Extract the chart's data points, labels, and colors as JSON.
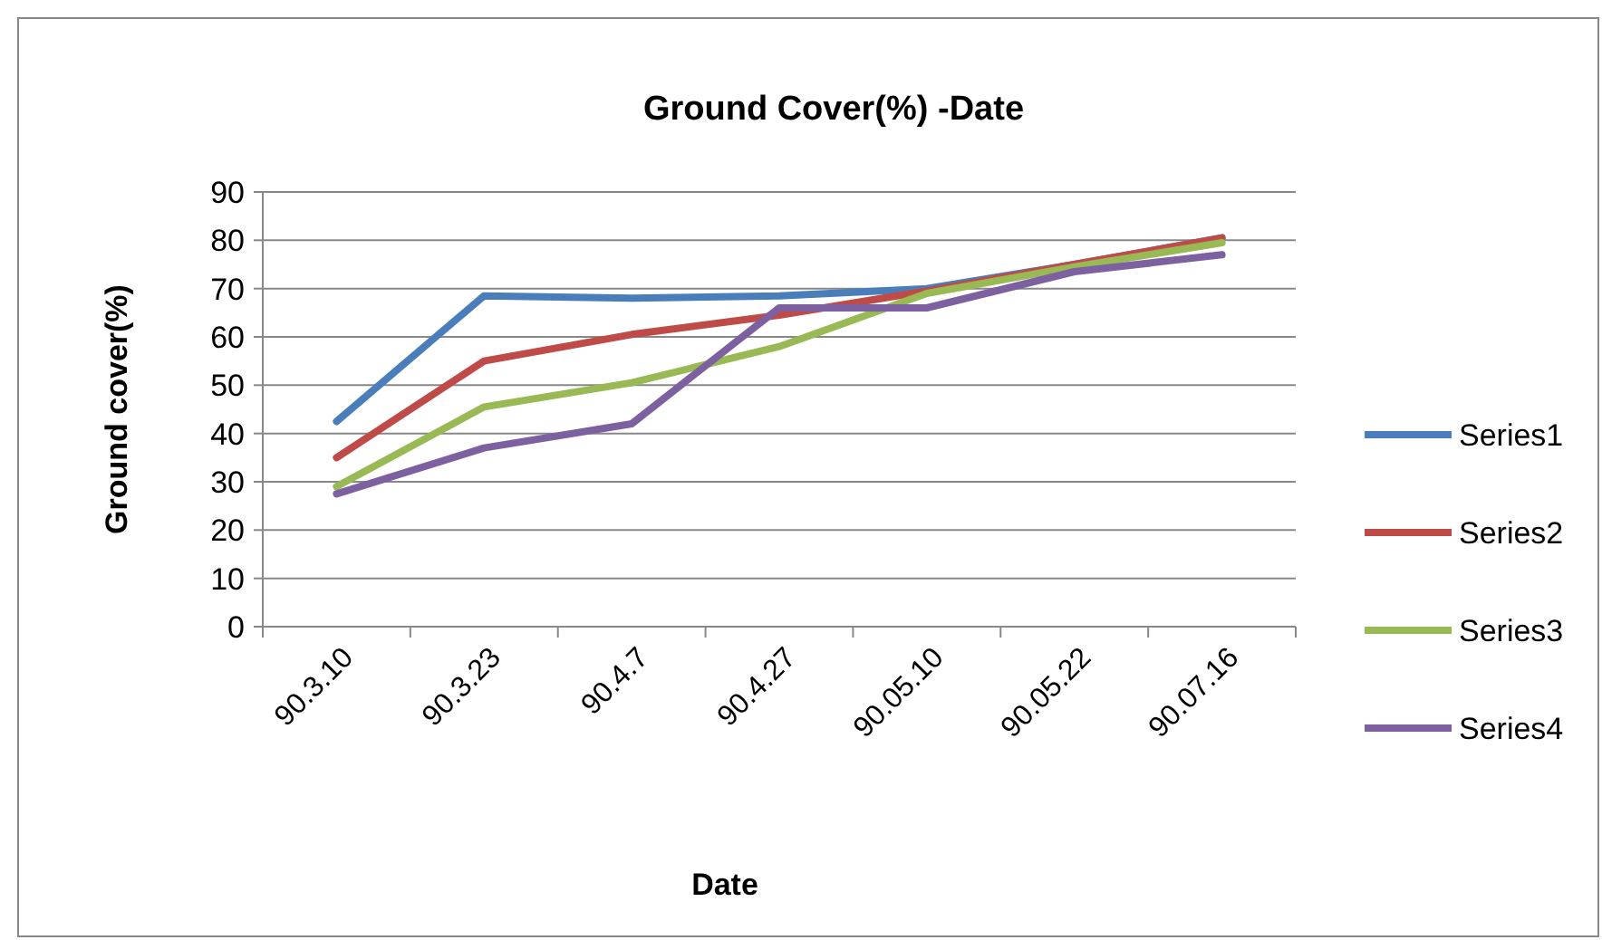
{
  "chart_data": {
    "type": "line",
    "title": "Ground Cover(%) -Date",
    "xlabel": "Date",
    "ylabel": "Ground cover(%)",
    "categories": [
      "90.3.10",
      "90.3.23",
      "90.4.7",
      "90.4.27",
      "90.05.10",
      "90.05.22",
      "90.07.16"
    ],
    "series": [
      {
        "name": "Series1",
        "color": "#4a7ebb",
        "values": [
          42.5,
          68.5,
          68,
          68.5,
          70,
          75,
          80.5
        ]
      },
      {
        "name": "Series2",
        "color": "#be4b48",
        "values": [
          35,
          55,
          60.5,
          64.5,
          69.5,
          75,
          80.5
        ]
      },
      {
        "name": "Series3",
        "color": "#98b954",
        "values": [
          29,
          45.5,
          50.5,
          58,
          69,
          74.5,
          79.5
        ]
      },
      {
        "name": "Series4",
        "color": "#7d60a0",
        "values": [
          27.5,
          37,
          42,
          66,
          66,
          73.5,
          77
        ]
      }
    ],
    "ylim": [
      0,
      90
    ],
    "yticks": [
      0,
      10,
      20,
      30,
      40,
      50,
      60,
      70,
      80,
      90
    ],
    "grid": "y",
    "legend": "right",
    "marker": "none",
    "line_style": "solid"
  }
}
